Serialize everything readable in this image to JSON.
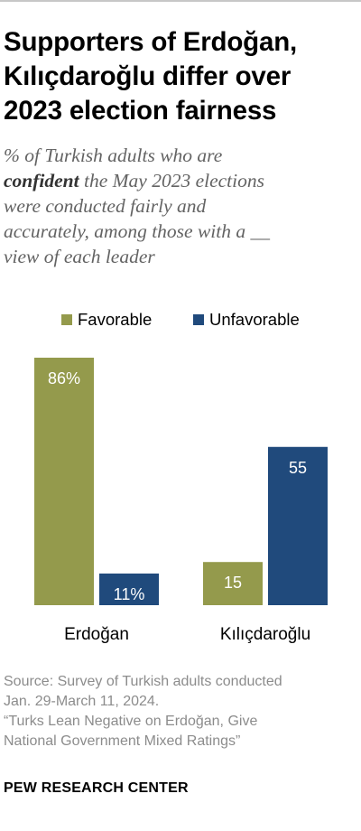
{
  "title_lines": [
    "Supporters of Erdoğan,",
    "Kılıçdaroğlu differ over",
    "2023 election fairness"
  ],
  "subtitle": {
    "line1": "% of Turkish adults who are",
    "line2_bold": "confident",
    "line2_rest": " the May 2023 elections",
    "line3": "were conducted fairly and",
    "line4": "accurately, among those with a __",
    "line5": "view of each leader"
  },
  "legend": {
    "favorable": "Favorable",
    "unfavorable": "Unfavorable"
  },
  "colors": {
    "favorable": "#949a4c",
    "unfavorable": "#204a7c"
  },
  "chart_data": {
    "type": "bar",
    "title": "Supporters of Erdoğan, Kılıçdaroğlu differ over 2023 election fairness",
    "categories": [
      "Erdoğan",
      "Kılıçdaroğlu"
    ],
    "series": [
      {
        "name": "Favorable",
        "values": [
          86,
          15
        ],
        "labels": [
          "86%",
          "15"
        ]
      },
      {
        "name": "Unfavorable",
        "values": [
          11,
          55
        ],
        "labels": [
          "11%",
          "55"
        ]
      }
    ],
    "ylim": [
      0,
      86
    ],
    "grid": false,
    "legend_position": "top"
  },
  "source_lines": [
    "Source: Survey of Turkish adults conducted",
    "Jan. 29-March 11, 2024.",
    "“Turks Lean Negative on Erdoğan, Give",
    "National Government Mixed Ratings”"
  ],
  "brand": "PEW RESEARCH CENTER"
}
